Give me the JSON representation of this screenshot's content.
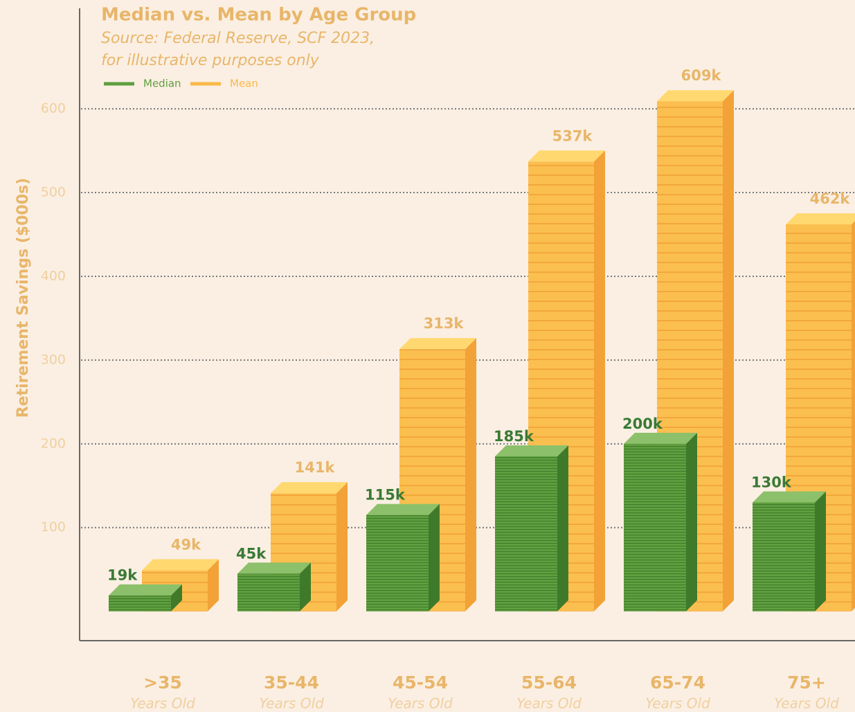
{
  "chart_data": {
    "type": "bar",
    "title": "Median vs. Mean by Age Group",
    "subtitle": [
      "Source: Federal Reserve, SCF 2023,",
      "for illustrative purposes only"
    ],
    "y_label": "Retirement Savings ($000s)",
    "categories": [
      ">35",
      "35-44",
      "45-54",
      "55-64",
      "65-74",
      "75+"
    ],
    "category_sublabel": "Years Old",
    "series": [
      {
        "name": "Median",
        "color": "#5f9e3f",
        "values": [
          19,
          45,
          115,
          185,
          200,
          130
        ],
        "value_labels": [
          "19k",
          "45k",
          "115k",
          "185k",
          "200k",
          "130k"
        ]
      },
      {
        "name": "Mean",
        "color": "#f9b84a",
        "values": [
          49,
          141,
          313,
          537,
          609,
          462
        ],
        "value_labels": [
          "49k",
          "141k",
          "313k",
          "537k",
          "609k",
          "462k"
        ]
      }
    ],
    "ylim": [
      -35,
      720
    ],
    "yticks": [
      100,
      200,
      300,
      400,
      500,
      600
    ],
    "grid": true
  }
}
